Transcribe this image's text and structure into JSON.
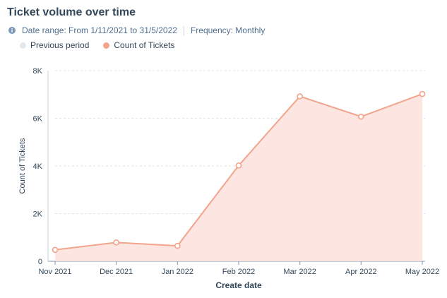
{
  "header": {
    "title": "Ticket volume over time",
    "date_range": "Date range: From 1/11/2021 to 31/5/2022",
    "frequency": "Frequency: Monthly"
  },
  "legend": [
    {
      "label": "Previous period",
      "color": "#e5e8eb"
    },
    {
      "label": "Count of Tickets",
      "color": "#f2a48c"
    }
  ],
  "chart_data": {
    "type": "area",
    "title": "Ticket volume over time",
    "xlabel": "Create date",
    "ylabel": "Count of Tickets",
    "categories": [
      "Nov 2021",
      "Dec 2021",
      "Jan 2022",
      "Feb 2022",
      "Mar 2022",
      "Apr 2022",
      "May 2022"
    ],
    "series": [
      {
        "name": "Count of Tickets",
        "values": [
          480,
          790,
          650,
          4020,
          6920,
          6070,
          7020
        ],
        "color": "#f2a48c"
      }
    ],
    "yticks": [
      "0",
      "2K",
      "4K",
      "6K",
      "8K"
    ],
    "ylim": [
      0,
      8000
    ],
    "grid": true,
    "legend_position": "top-left",
    "fill_color": "#fde3de",
    "line_color": "#f2a48c"
  }
}
